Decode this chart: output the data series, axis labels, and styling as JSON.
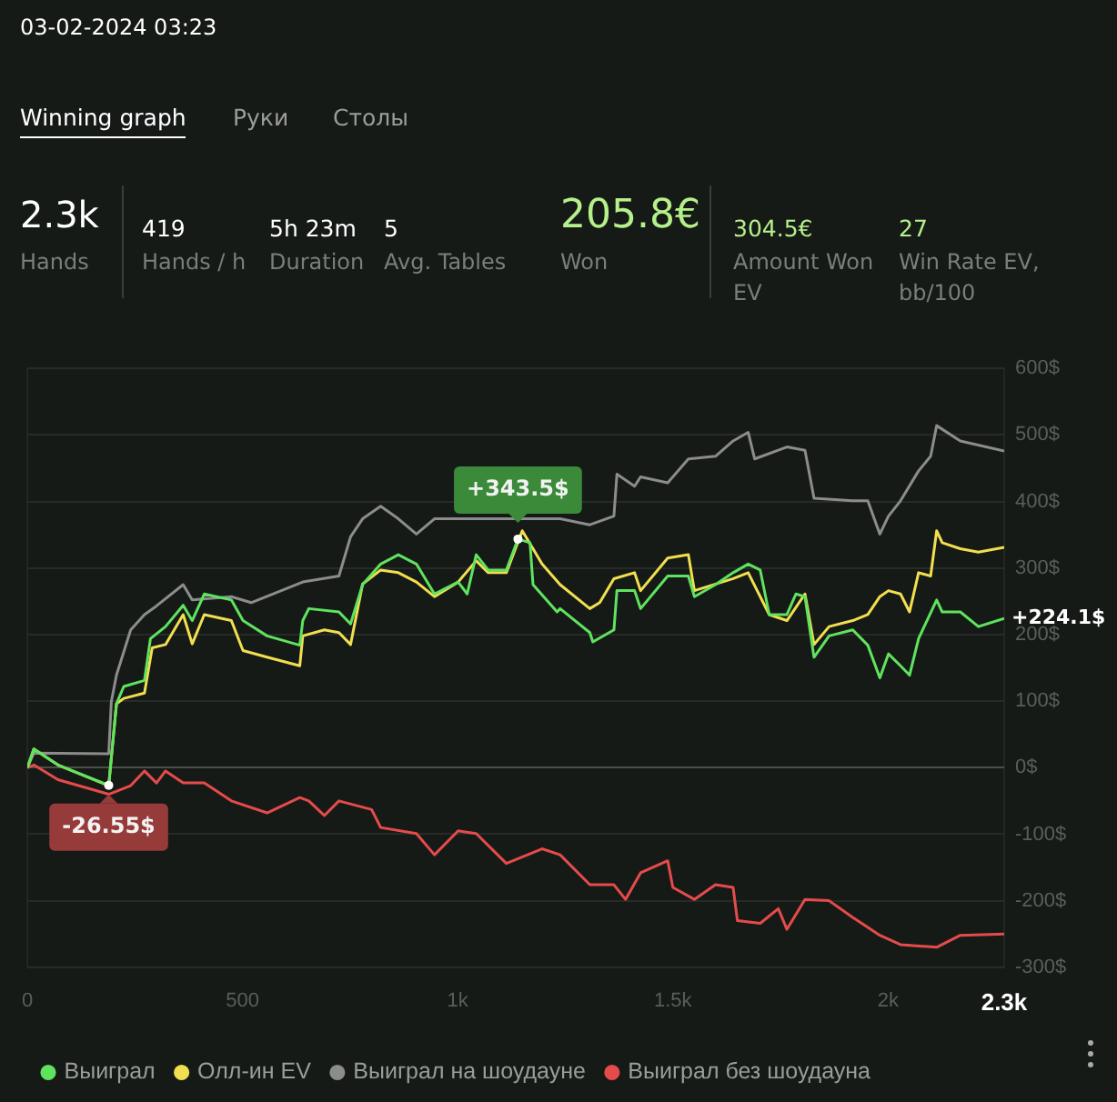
{
  "chart_data": {
    "type": "line",
    "title": "03-02-2024 03:23",
    "annotations": [
      "Winning graph",
      "Руки",
      "Столы",
      "2.3k",
      "Hands",
      "419",
      "Hands / h",
      "5h 23m",
      "Duration",
      "5",
      "Avg. Tables",
      "205.8€",
      "Won",
      "304.5€",
      "Amount Won EV",
      "27",
      "Win Rate EV, bb/100",
      {
        "text": "+343.5$",
        "x": 1140,
        "y": 343.5
      },
      {
        "text": "-26.55$",
        "x": 189,
        "y": -26.55
      },
      {
        "text": "+224.1$",
        "x": 2270,
        "y": 224.1
      }
    ],
    "xlim": [
      0,
      2270
    ],
    "xticks": [
      0,
      500,
      {
        "value": 1000,
        "label": "1k"
      },
      {
        "value": 1500,
        "label": "1.5k"
      },
      {
        "value": 2000,
        "label": "2k"
      },
      {
        "value": 2270,
        "label": "2.3k"
      }
    ],
    "ylim": [
      -300,
      600
    ],
    "yticks": [
      {
        "value": -300,
        "label": "-300$"
      },
      {
        "value": -200,
        "label": "-200$"
      },
      {
        "value": -100,
        "label": "-100$"
      },
      {
        "value": 0,
        "label": "0$"
      },
      {
        "value": 100,
        "label": "100$"
      },
      {
        "value": 200,
        "label": "200$"
      },
      {
        "value": 300,
        "label": "300$"
      },
      {
        "value": 400,
        "label": "400$"
      },
      {
        "value": 500,
        "label": "500$"
      },
      {
        "value": 600,
        "label": "600$"
      }
    ],
    "grid": "y",
    "legend": "bottom",
    "marker": "none",
    "line_style": "solid",
    "series": [
      {
        "name": "Выиграл",
        "color": "#5fe35f",
        "x": [
          0,
          15,
          71,
          189,
          207,
          224,
          272,
          286,
          321,
          362,
          383,
          411,
          474,
          501,
          557,
          633,
          640,
          654,
          724,
          751,
          779,
          821,
          862,
          904,
          946,
          1001,
          1022,
          1043,
          1071,
          1113,
          1140,
          1168,
          1175,
          1231,
          1238,
          1307,
          1314,
          1363,
          1370,
          1411,
          1425,
          1488,
          1536,
          1550,
          1599,
          1640,
          1675,
          1703,
          1724,
          1765,
          1786,
          1807,
          1828,
          1863,
          1918,
          1953,
          1981,
          2001,
          2029,
          2050,
          2071,
          2113,
          2126,
          2168,
          2210,
          2270
        ],
        "values": [
          0,
          28,
          4,
          -26.55,
          96,
          122,
          131,
          194,
          212,
          244,
          221,
          261,
          252,
          221,
          198,
          184,
          221,
          239,
          234,
          216,
          275,
          306,
          320,
          306,
          261,
          279,
          261,
          320,
          297,
          297,
          343.5,
          338,
          275,
          234,
          239,
          203,
          189,
          207,
          266,
          266,
          239,
          288,
          288,
          257,
          275,
          293,
          306,
          297,
          230,
          230,
          261,
          257,
          166,
          198,
          207,
          184,
          135,
          171,
          153,
          139,
          194,
          252,
          234,
          234,
          212,
          224.1
        ]
      },
      {
        "name": "Олл-ин EV",
        "color": "#f2df4f",
        "x": [
          0,
          15,
          71,
          189,
          207,
          224,
          272,
          290,
          321,
          362,
          383,
          411,
          474,
          501,
          557,
          633,
          640,
          690,
          724,
          751,
          779,
          821,
          862,
          904,
          946,
          1001,
          1043,
          1071,
          1113,
          1150,
          1175,
          1196,
          1238,
          1307,
          1330,
          1363,
          1411,
          1425,
          1488,
          1536,
          1550,
          1640,
          1675,
          1724,
          1765,
          1807,
          1828,
          1863,
          1918,
          1953,
          1981,
          2001,
          2029,
          2050,
          2071,
          2099,
          2113,
          2126,
          2168,
          2210,
          2270
        ],
        "values": [
          0,
          28,
          4,
          -27,
          96,
          104,
          112,
          180,
          185,
          230,
          186,
          230,
          221,
          176,
          166,
          153,
          198,
          207,
          203,
          185,
          276,
          297,
          293,
          279,
          257,
          279,
          311,
          293,
          293,
          356,
          329,
          306,
          275,
          239,
          248,
          284,
          293,
          266,
          315,
          320,
          266,
          284,
          293,
          230,
          221,
          261,
          185,
          212,
          221,
          230,
          257,
          266,
          261,
          234,
          293,
          288,
          356,
          338,
          329,
          324,
          331
        ]
      },
      {
        "name": "Выиграл на шоудауне",
        "color": "#8c8c8c",
        "x": [
          0,
          15,
          189,
          195,
          207,
          240,
          272,
          300,
          362,
          383,
          474,
          520,
          640,
          724,
          751,
          779,
          821,
          862,
          904,
          946,
          1000,
          1196,
          1238,
          1307,
          1363,
          1370,
          1411,
          1425,
          1488,
          1536,
          1599,
          1640,
          1675,
          1690,
          1765,
          1807,
          1828,
          1918,
          1953,
          1981,
          2001,
          2029,
          2071,
          2099,
          2113,
          2168,
          2270
        ],
        "values": [
          0,
          22,
          21,
          99,
          139,
          207,
          230,
          243,
          275,
          252,
          257,
          248,
          279,
          288,
          347,
          374,
          393,
          374,
          351,
          374,
          374,
          374,
          374,
          365,
          378,
          441,
          423,
          437,
          428,
          464,
          468,
          491,
          504,
          464,
          482,
          477,
          405,
          401,
          401,
          351,
          378,
          401,
          446,
          468,
          514,
          491,
          476
        ]
      },
      {
        "name": "Выиграл без шоудауна",
        "color": "#e54b4b",
        "x": [
          0,
          15,
          71,
          189,
          240,
          272,
          300,
          321,
          362,
          411,
          474,
          557,
          633,
          654,
          690,
          724,
          800,
          821,
          904,
          946,
          1001,
          1043,
          1113,
          1196,
          1238,
          1307,
          1363,
          1390,
          1425,
          1488,
          1500,
          1550,
          1599,
          1640,
          1650,
          1703,
          1745,
          1765,
          1807,
          1863,
          1918,
          1981,
          2029,
          2113,
          2168,
          2270
        ],
        "values": [
          0,
          4,
          -18,
          -40,
          -27,
          -5,
          -23,
          -5,
          -23,
          -23,
          -50,
          -68,
          -45,
          -50,
          -72,
          -50,
          -63,
          -90,
          -99,
          -131,
          -95,
          -99,
          -144,
          -122,
          -131,
          -176,
          -176,
          -198,
          -158,
          -140,
          -180,
          -198,
          -176,
          -180,
          -230,
          -234,
          -212,
          -243,
          -198,
          -200,
          -225,
          -252,
          -266,
          -270,
          -252,
          -250
        ]
      }
    ]
  }
}
